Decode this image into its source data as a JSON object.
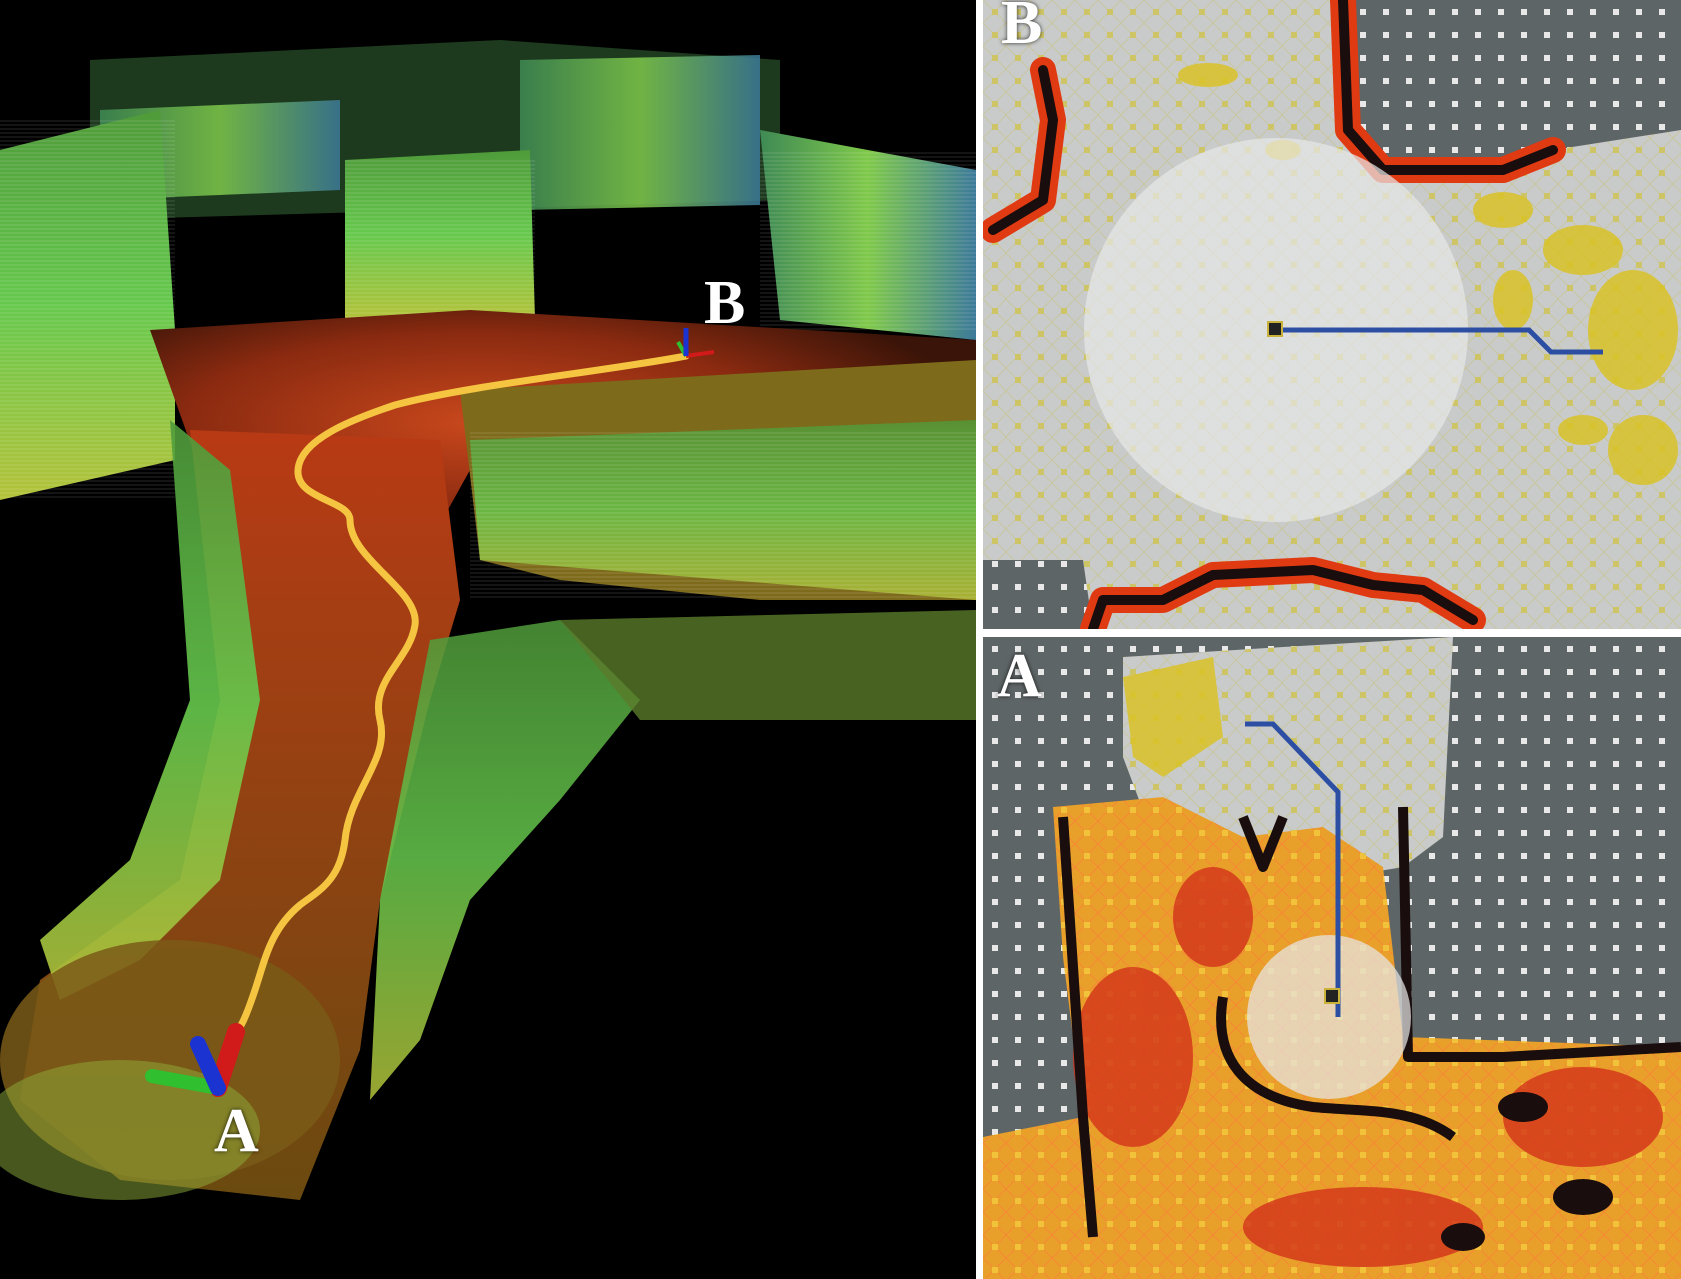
{
  "figure": {
    "panel_3d": {
      "labels": {
        "start": "A",
        "end": "B"
      },
      "colors": {
        "background": "#000000",
        "path": "#f5c542",
        "axis_x": "#d11a1a",
        "axis_y": "#2fbf2f",
        "axis_z": "#1a33d1"
      }
    },
    "panel_b": {
      "label": "B",
      "colors": {
        "unknown": "#5e6566",
        "free": "#c9cbcb",
        "inflated": "#d9c227",
        "obstacle": "#1a0d0d",
        "cost_high": "#e03a12",
        "plan": "#2d4fa3",
        "footprint_circle": "#e6e6e6"
      }
    },
    "panel_a": {
      "label": "A",
      "colors": {
        "unknown": "#5e6566",
        "free": "#c9cbcb",
        "inflated": "#d9c227",
        "obstacle": "#1a0d0d",
        "cost_high": "#e03a12",
        "plan": "#2d4fa3",
        "footprint_circle": "#e6e6e6"
      }
    }
  }
}
